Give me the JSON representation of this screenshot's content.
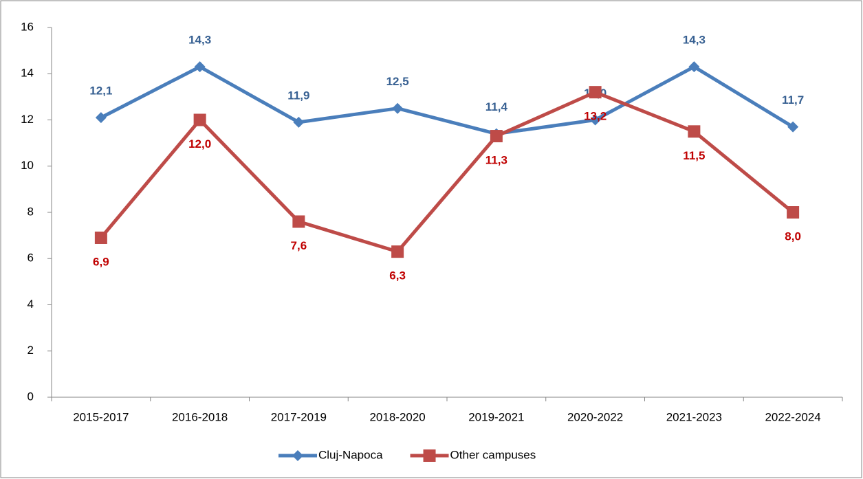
{
  "chart_data": {
    "type": "line",
    "categories": [
      "2015-2017",
      "2016-2018",
      "2017-2019",
      "2018-2020",
      "2019-2021",
      "2020-2022",
      "2021-2023",
      "2022-2024"
    ],
    "series": [
      {
        "name": "Cluj-Napoca",
        "color": "#4a7ebb",
        "label_color": "#376092",
        "marker": "diamond",
        "label_position": "above",
        "values": [
          12.1,
          14.3,
          11.9,
          12.5,
          11.4,
          12.0,
          14.3,
          11.7
        ],
        "value_labels": [
          "12,1",
          "14,3",
          "11,9",
          "12,5",
          "11,4",
          "12,0",
          "14,3",
          "11,7"
        ]
      },
      {
        "name": "Other campuses",
        "color": "#be4b48",
        "label_color": "#c00000",
        "marker": "square",
        "label_position": "below",
        "values": [
          6.9,
          12.0,
          7.6,
          6.3,
          11.3,
          13.2,
          11.5,
          8.0
        ],
        "value_labels": [
          "6,9",
          "12,0",
          "7,6",
          "6,3",
          "11,3",
          "13,2",
          "11,5",
          "8,0"
        ]
      }
    ],
    "ylim": [
      0,
      16
    ],
    "yticks": [
      0,
      2,
      4,
      6,
      8,
      10,
      12,
      14,
      16
    ],
    "grid": false,
    "legend": "bottom"
  }
}
